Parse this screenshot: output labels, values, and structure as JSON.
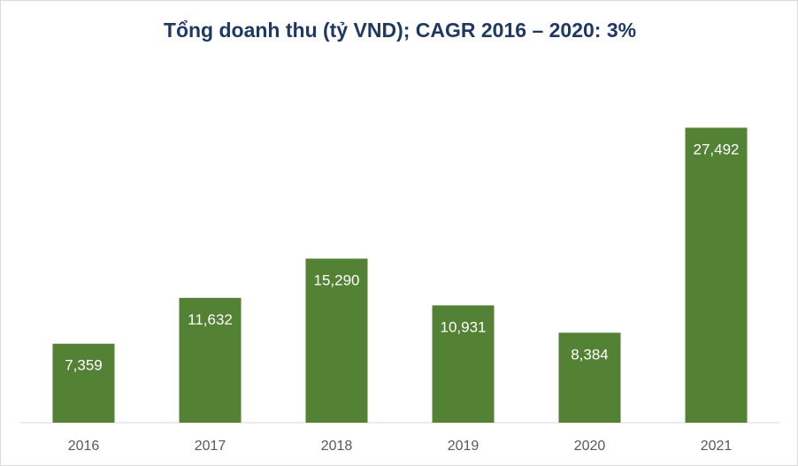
{
  "chart_data": {
    "type": "bar",
    "title": "Tổng doanh thu (tỷ VND); CAGR 2016 – 2020: 3%",
    "categories": [
      "2016",
      "2017",
      "2018",
      "2019",
      "2020",
      "2021"
    ],
    "values": [
      7359,
      11632,
      15290,
      10931,
      8384,
      27492
    ],
    "data_labels": [
      "7,359",
      "11,632",
      "15,290",
      "10,931",
      "8,384",
      "27,492"
    ],
    "xlabel": "",
    "ylabel": "",
    "ylim": [
      0,
      30000
    ],
    "grid": false,
    "legend": "none",
    "colors": {
      "bar": "#548235",
      "title": "#1f3864",
      "label": "#ffffff",
      "tick": "#595959",
      "axis": "#d9d9d9"
    }
  }
}
